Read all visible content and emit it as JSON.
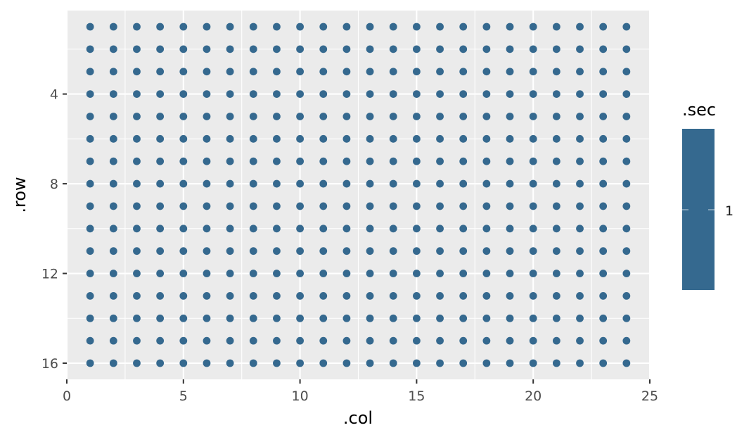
{
  "chart_data": {
    "type": "scatter",
    "xlabel": ".col",
    "ylabel": ".row",
    "x_range": [
      1,
      24
    ],
    "y_range": [
      1,
      16
    ],
    "xlim": [
      0,
      25
    ],
    "ylim": [
      16,
      1
    ],
    "y_reversed": true,
    "x_ticks": [
      0,
      5,
      10,
      15,
      20,
      25
    ],
    "y_ticks": [
      4,
      8,
      12,
      16
    ],
    "grid": true,
    "panel_background": "#EBEBEB",
    "point_color": "#35698F",
    "legend": {
      "title": ".sec",
      "placement": "right",
      "type": "colorbar",
      "labels": [
        "1"
      ],
      "color": "#35698F"
    },
    "series": [
      {
        "color_value": 1,
        "points_description_grid": {
          "cols_from": 1,
          "cols_to": 24,
          "rows_from": 1,
          "rows_to": 16
        }
      }
    ]
  }
}
